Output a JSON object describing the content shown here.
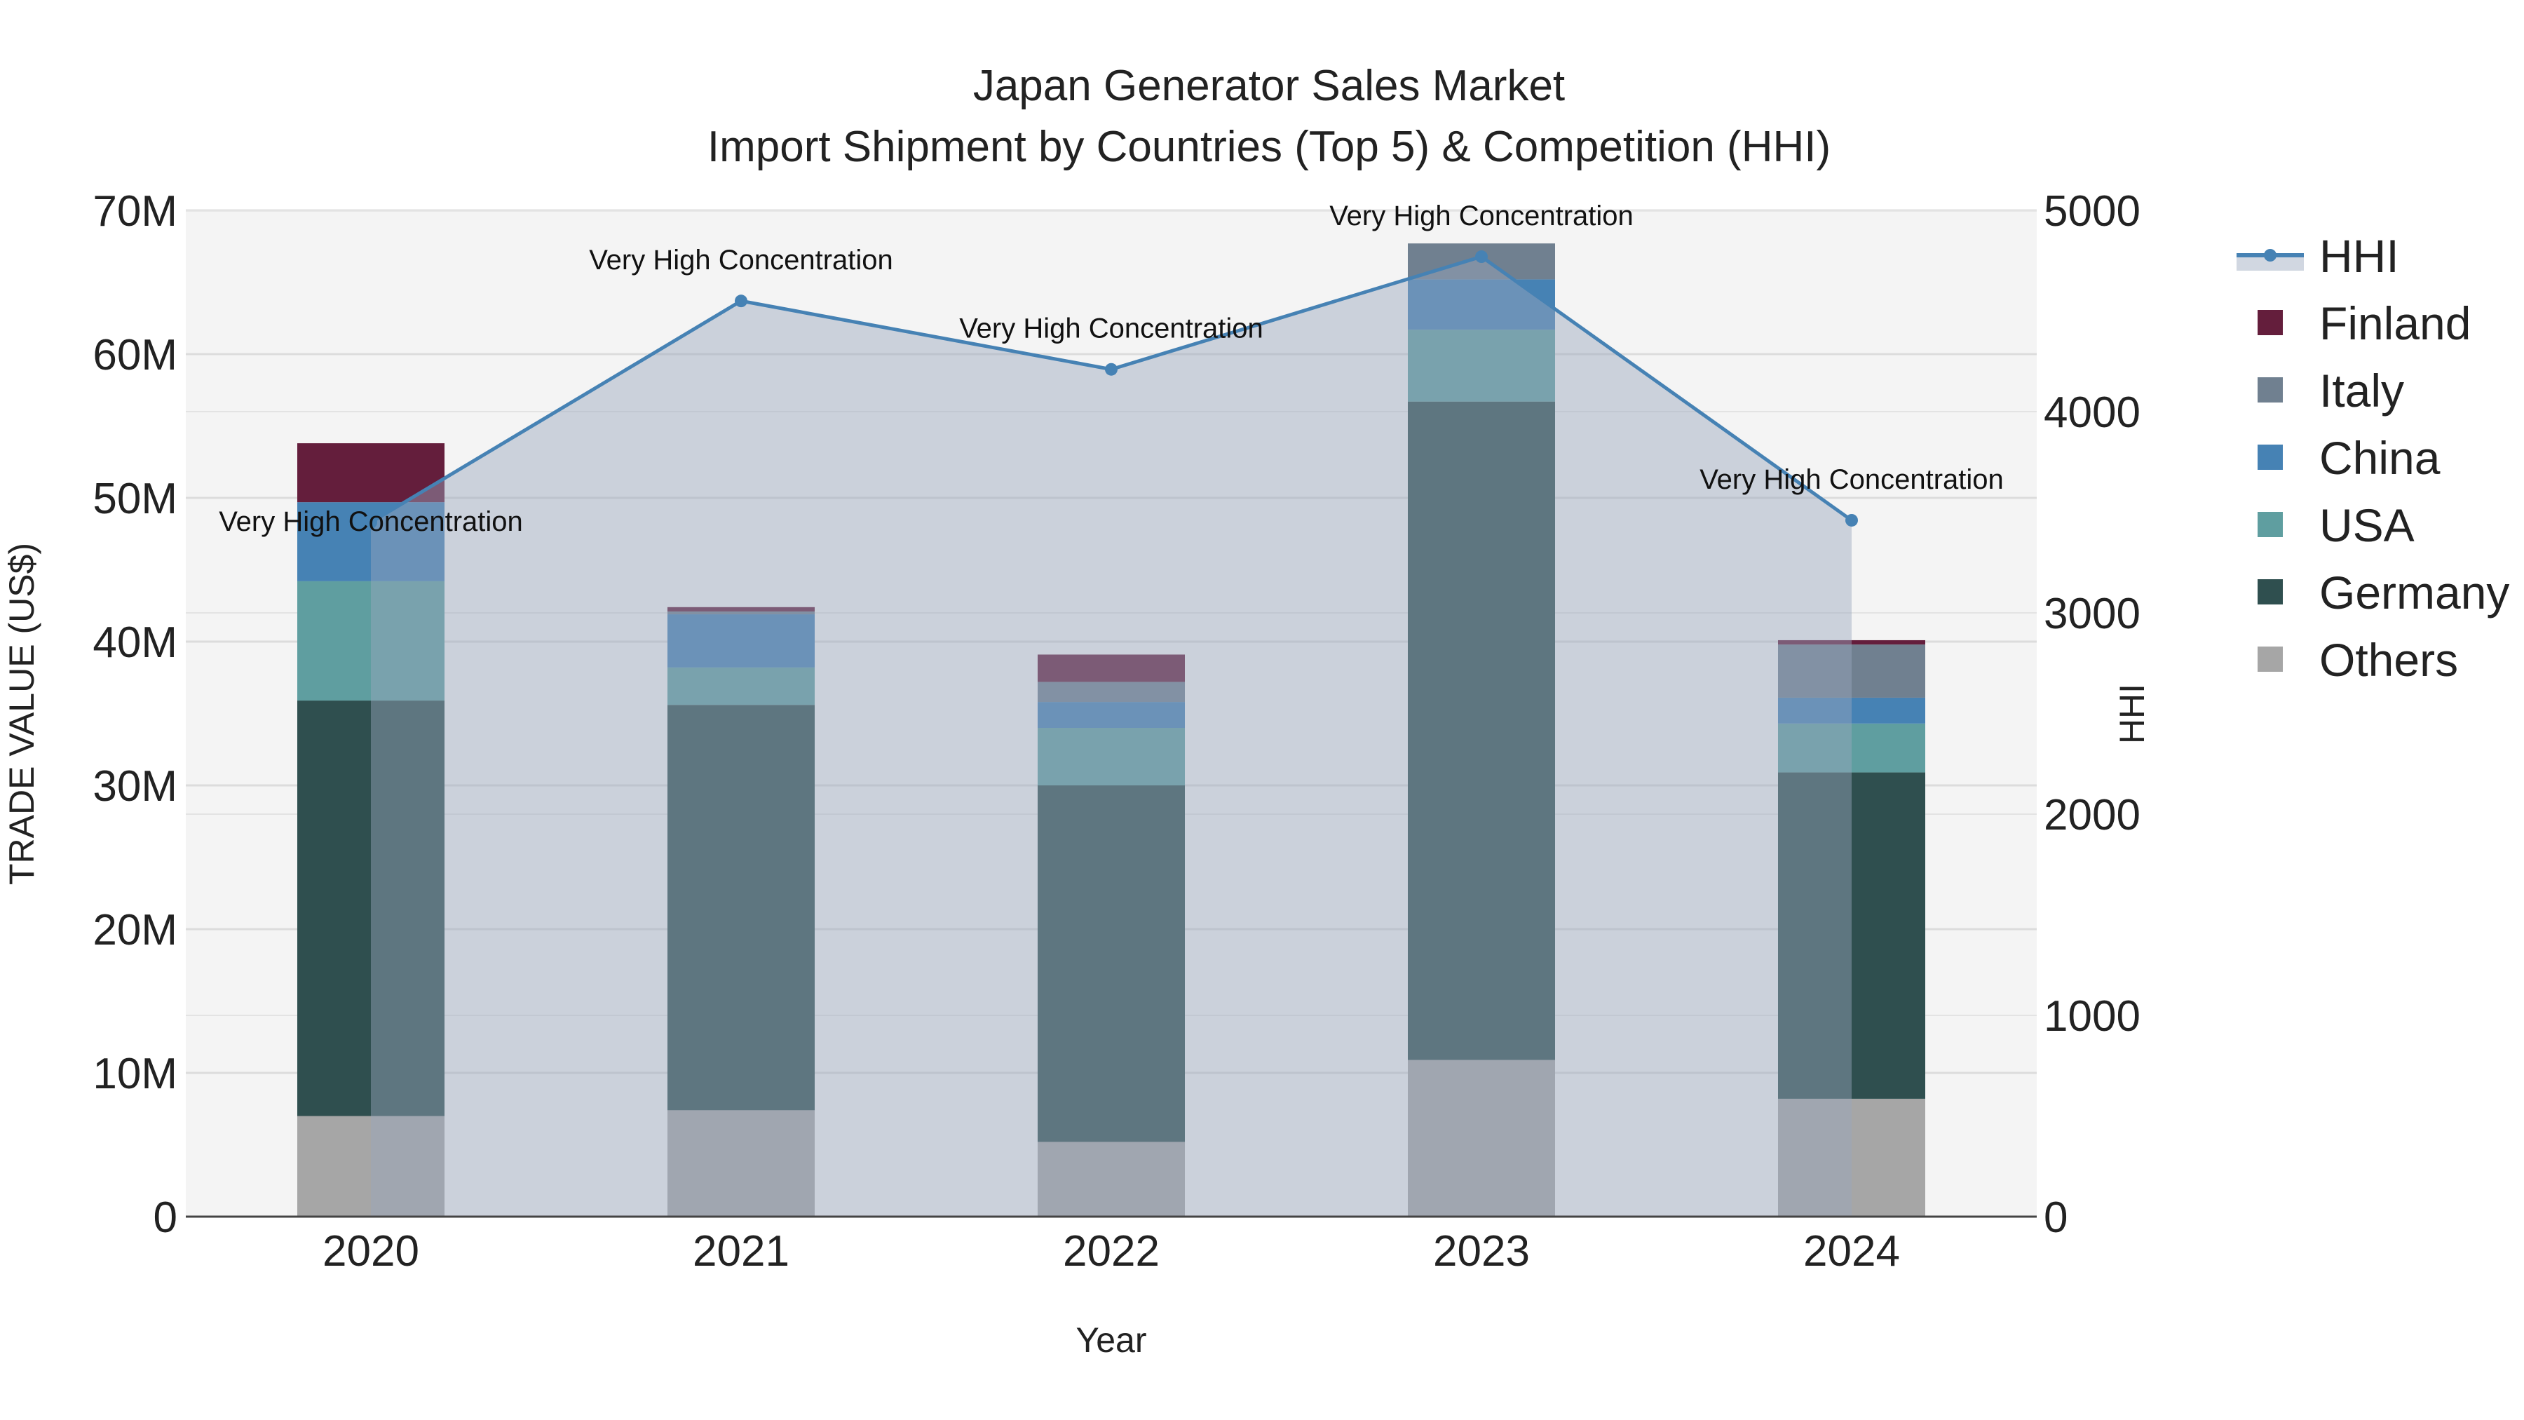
{
  "chart_data": {
    "type": "bar",
    "title": "Japan Generator Sales Market",
    "subtitle": "Import Shipment by Countries (Top 5) & Competition (HHI)",
    "xlabel": "Year",
    "ylabel": "TRADE VALUE (US$)",
    "y2label": "HHI",
    "categories": [
      "2020",
      "2021",
      "2022",
      "2023",
      "2024"
    ],
    "ylim": [
      0,
      70000000
    ],
    "y2lim": [
      0,
      5000
    ],
    "y_ticks": [
      0,
      10000000,
      20000000,
      30000000,
      40000000,
      50000000,
      60000000,
      70000000
    ],
    "y_tick_labels": [
      "0",
      "10M",
      "20M",
      "30M",
      "40M",
      "50M",
      "60M",
      "70M"
    ],
    "y2_ticks": [
      0,
      1000,
      2000,
      3000,
      4000,
      5000
    ],
    "y2_tick_labels": [
      "0",
      "1000",
      "2000",
      "3000",
      "4000",
      "5000"
    ],
    "series": [
      {
        "name": "Others",
        "color": "#a6a6a6",
        "values": [
          7000000,
          7400000,
          5200000,
          10900000,
          8200000
        ]
      },
      {
        "name": "Germany",
        "color": "#2f4f4f",
        "values": [
          28900000,
          28200000,
          24800000,
          45800000,
          22700000
        ]
      },
      {
        "name": "USA",
        "color": "#5f9ea0",
        "values": [
          8300000,
          2600000,
          4000000,
          5000000,
          3400000
        ]
      },
      {
        "name": "China",
        "color": "#4682b4",
        "values": [
          5500000,
          3700000,
          1800000,
          3500000,
          1800000
        ]
      },
      {
        "name": "Italy",
        "color": "#708090",
        "values": [
          0,
          200000,
          1400000,
          2500000,
          3700000
        ]
      },
      {
        "name": "Finland",
        "color": "#641e3c",
        "values": [
          4100000,
          300000,
          1900000,
          0,
          300000
        ]
      }
    ],
    "hhi": {
      "name": "HHI",
      "color": "#4682b4",
      "values": [
        3450,
        4550,
        4210,
        4770,
        3460
      ],
      "annotations": [
        "Very High Concentration",
        "Very High Concentration",
        "Very High Concentration",
        "Very High Concentration",
        "Very High Concentration"
      ]
    },
    "legend": [
      "HHI",
      "Finland",
      "Italy",
      "China",
      "USA",
      "Germany",
      "Others"
    ],
    "legend_position": "right",
    "grid": true,
    "background": "#f4f4f4"
  }
}
